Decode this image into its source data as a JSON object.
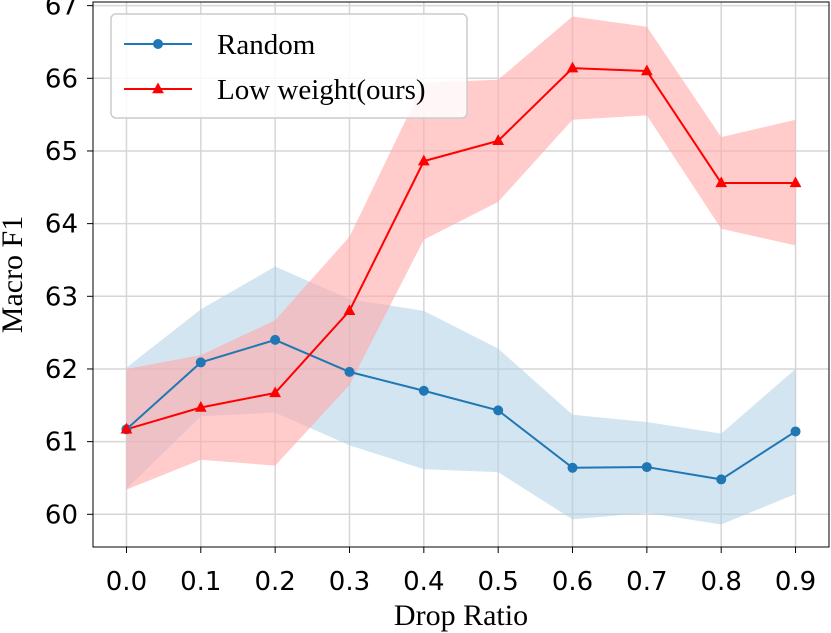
{
  "chart_data": {
    "type": "line",
    "title": "",
    "xlabel": "Drop Ratio",
    "ylabel": "Macro F1",
    "x": [
      0.0,
      0.1,
      0.2,
      0.3,
      0.4,
      0.5,
      0.6,
      0.7,
      0.8,
      0.9
    ],
    "x_tick_labels": [
      "0.0",
      "0.1",
      "0.2",
      "0.3",
      "0.4",
      "0.5",
      "0.6",
      "0.7",
      "0.8",
      "0.9"
    ],
    "y_tick_labels": [
      "60",
      "61",
      "62",
      "63",
      "64",
      "65",
      "66",
      "67"
    ],
    "xlim": [
      -0.045,
      0.945
    ],
    "ylim": [
      59.55,
      67.05
    ],
    "grid": true,
    "legend_position": "top-left",
    "series": [
      {
        "name": "Random",
        "color": "#1f77b4",
        "band_color": "#aecfe6",
        "marker": "circle",
        "values": [
          61.17,
          62.09,
          62.4,
          61.96,
          61.7,
          61.43,
          60.64,
          60.65,
          60.48,
          61.14
        ],
        "lower": [
          60.35,
          61.35,
          61.4,
          60.95,
          60.62,
          60.58,
          59.93,
          60.02,
          59.86,
          60.28
        ],
        "upper": [
          62.02,
          62.82,
          63.41,
          62.96,
          62.8,
          62.28,
          61.37,
          61.27,
          61.11,
          62.0
        ]
      },
      {
        "name": "Low weight(ours)",
        "color": "#ff0000",
        "band_color": "#ffa8a8",
        "marker": "triangle",
        "values": [
          61.17,
          61.47,
          61.67,
          62.8,
          64.86,
          65.14,
          66.14,
          66.1,
          64.56,
          64.56
        ],
        "lower": [
          60.34,
          60.75,
          60.67,
          61.78,
          63.78,
          64.3,
          65.43,
          65.49,
          63.93,
          63.7
        ],
        "upper": [
          62.0,
          62.19,
          62.67,
          63.82,
          65.94,
          65.98,
          66.85,
          66.71,
          65.19,
          65.43
        ]
      }
    ]
  }
}
